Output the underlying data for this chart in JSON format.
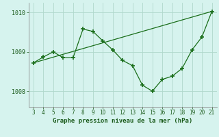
{
  "x": [
    3,
    4,
    5,
    6,
    7,
    8,
    9,
    10,
    11,
    12,
    13,
    14,
    15,
    16,
    17,
    18,
    19,
    20,
    21
  ],
  "y": [
    1008.72,
    1008.87,
    1009.0,
    1008.85,
    1008.85,
    1009.58,
    1009.52,
    1009.28,
    1009.05,
    1008.78,
    1008.65,
    1008.15,
    1008.0,
    1008.3,
    1008.38,
    1008.58,
    1009.05,
    1009.38,
    1010.03
  ],
  "trend_x": [
    3,
    21
  ],
  "trend_y": [
    1008.72,
    1010.03
  ],
  "line_color": "#1a6e1a",
  "bg_color": "#d6f3ee",
  "xlabel": "Graphe pression niveau de la mer (hPa)",
  "ylim": [
    1007.6,
    1010.25
  ],
  "yticks": [
    1008,
    1009,
    1010
  ],
  "xlim": [
    2.5,
    21.5
  ],
  "xticks": [
    3,
    4,
    5,
    6,
    7,
    8,
    9,
    10,
    11,
    12,
    13,
    14,
    15,
    16,
    17,
    18,
    19,
    20,
    21
  ],
  "grid_color": "#b0d8cc"
}
